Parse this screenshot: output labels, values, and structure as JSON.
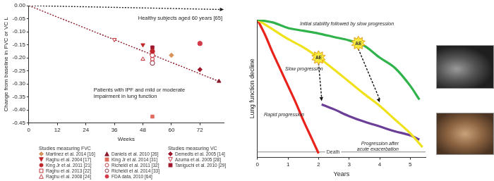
{
  "chart_data": [
    {
      "type": "scatter",
      "x_label": "Weeks",
      "y_label": "Change from baseline in FVC or VC L",
      "xlim": [
        0,
        82
      ],
      "xticks": [
        0,
        12,
        24,
        36,
        48,
        60,
        72
      ],
      "ylim": [
        -0.45,
        0
      ],
      "yticks": [
        {
          "value": 0,
          "label": "0.00"
        },
        {
          "value": -0.05,
          "label": "-0.05"
        },
        {
          "value": -0.1,
          "label": "-0.10"
        },
        {
          "value": -0.15,
          "label": "-0.15"
        },
        {
          "value": -0.2,
          "label": "-0.20"
        },
        {
          "value": -0.25,
          "label": "-0.25"
        },
        {
          "value": -0.3,
          "label": "-0.30"
        },
        {
          "value": -0.35,
          "label": "-0.35"
        },
        {
          "value": -0.4,
          "label": "-0.40"
        },
        {
          "value": -0.45,
          "label": "-0.45"
        }
      ],
      "grid": false,
      "legend": "bottom",
      "lines": [
        {
          "name": "Healthy subjects aged 60 years [65]",
          "color": "#1a1a1a",
          "line_style": "dotted",
          "x": [
            0,
            82
          ],
          "values": [
            0,
            -0.015
          ]
        },
        {
          "name": "Patients with IPF and mild or moderate impairment in lung function",
          "color": "#8b1a2b",
          "line_style": "dotted",
          "x": [
            0,
            80
          ],
          "values": [
            0,
            -0.29
          ]
        }
      ],
      "series_groups": [
        {
          "title": "Studies measuring FVC",
          "series": [
            {
              "name": "Martinez et al. 2014 [16]",
              "color": "#d9925a",
              "marker": "diamond",
              "x": [
                60
              ],
              "values": [
                -0.19
              ]
            },
            {
              "name": "Raghu et al. 2004 [17]",
              "color": "#c0282d",
              "marker": "triangle_down",
              "x": [
                48
              ],
              "values": [
                -0.15
              ]
            },
            {
              "name": "King Jr et al. 2011 [21]",
              "color": "#c0282d",
              "marker": "circle",
              "x": [
                52
              ],
              "values": [
                -0.175
              ]
            },
            {
              "name": "Raghu et al. 2013 [22]",
              "color": "#c0282d",
              "marker": "open_square",
              "x": [
                52
              ],
              "values": [
                -0.205
              ]
            },
            {
              "name": "Raghu et al. 2008 [24]",
              "color": "#c0282d",
              "marker": "open_triangle",
              "x": [
                48
              ],
              "values": [
                -0.205
              ]
            },
            {
              "name": "Daniels et al. 2010 [26]",
              "color": "#8b1a2b",
              "marker": "triangle",
              "x": [
                80
              ],
              "values": [
                -0.29
              ]
            },
            {
              "name": "King Jr et al. 2014 [31]",
              "color": "#e06a5a",
              "marker": "square",
              "x": [
                52
              ],
              "values": [
                -0.425
              ]
            },
            {
              "name": "Richeldi et al. 2011 [32]",
              "color": "#c0282d",
              "marker": "open_circle",
              "x": [
                52
              ],
              "values": [
                -0.19
              ]
            },
            {
              "name": "Richeldi et al. 2014 [33]",
              "color": "#8b1a2b",
              "marker": "open_circle",
              "x": [
                52
              ],
              "values": [
                -0.22
              ]
            },
            {
              "name": "FDA data, 2010 [64]",
              "color": "#d33a4a",
              "marker": "circle",
              "x": [
                72
              ],
              "values": [
                -0.145
              ]
            }
          ]
        },
        {
          "title": "Studies measuring VC",
          "series": [
            {
              "name": "Demedts et al. 2005 [14]",
              "color": "#a0182c",
              "marker": "diamond",
              "x": [
                72
              ],
              "values": [
                -0.245
              ]
            },
            {
              "name": "Azuma et al. 2005 [28]",
              "color": "#c0282d",
              "marker": "open_triangle_down",
              "x": [
                36
              ],
              "values": [
                -0.13
              ]
            },
            {
              "name": "Taniguchi et al. 2010 [29]",
              "color": "#a0182c",
              "marker": "square",
              "x": [
                52
              ],
              "values": [
                -0.16
              ]
            }
          ]
        }
      ]
    },
    {
      "type": "line",
      "x_label": "Years",
      "y_label": "Lung function decline",
      "xlim": [
        0,
        5.5
      ],
      "xticks": [
        0,
        1,
        2,
        3,
        4,
        5
      ],
      "ylim": [
        0,
        100
      ],
      "tick_labels": "x",
      "grid": false,
      "series": [
        {
          "name": "Initial stability followed by slow progression",
          "color": "#2fb34a",
          "x": [
            0,
            0.5,
            1,
            1.5,
            2,
            2.5,
            3,
            3.5,
            4,
            4.5,
            5,
            5.3
          ],
          "values": [
            100,
            98,
            94,
            92,
            90,
            87.5,
            85,
            81,
            72.5,
            65,
            52,
            42
          ]
        },
        {
          "name": "Slow progression",
          "color": "#efe21c",
          "x": [
            0,
            0.5,
            1,
            1.5,
            2,
            2.5,
            3,
            3.5,
            4,
            4.5,
            5,
            5.4
          ],
          "values": [
            100,
            93,
            86,
            80,
            72.5,
            64,
            55,
            46,
            37.5,
            27.5,
            17.5,
            7.5
          ]
        },
        {
          "name": "Rapid progression",
          "color": "#e8231c",
          "x": [
            0,
            0.25,
            0.5,
            0.75,
            1,
            1.25,
            1.5,
            1.75,
            2
          ],
          "values": [
            100,
            89,
            76,
            64,
            52,
            40,
            27,
            15,
            3
          ]
        },
        {
          "name": "Progression after acute exacerbation",
          "color": "#6b3f98",
          "x": [
            2.1,
            2.5,
            3,
            3.5,
            4,
            4.5,
            5,
            5.3
          ],
          "values": [
            38.5,
            35,
            30,
            26,
            22.5,
            19,
            16,
            13
          ]
        }
      ],
      "events": [
        {
          "label": "AE",
          "x": 2,
          "y": 72.5,
          "to_x": 2.1,
          "to_y": 41
        },
        {
          "label": "AE",
          "x": 3.3,
          "y": 83,
          "to_x": 4,
          "to_y": 40
        }
      ],
      "reference_line": {
        "label": "Death",
        "y": 4
      }
    }
  ]
}
